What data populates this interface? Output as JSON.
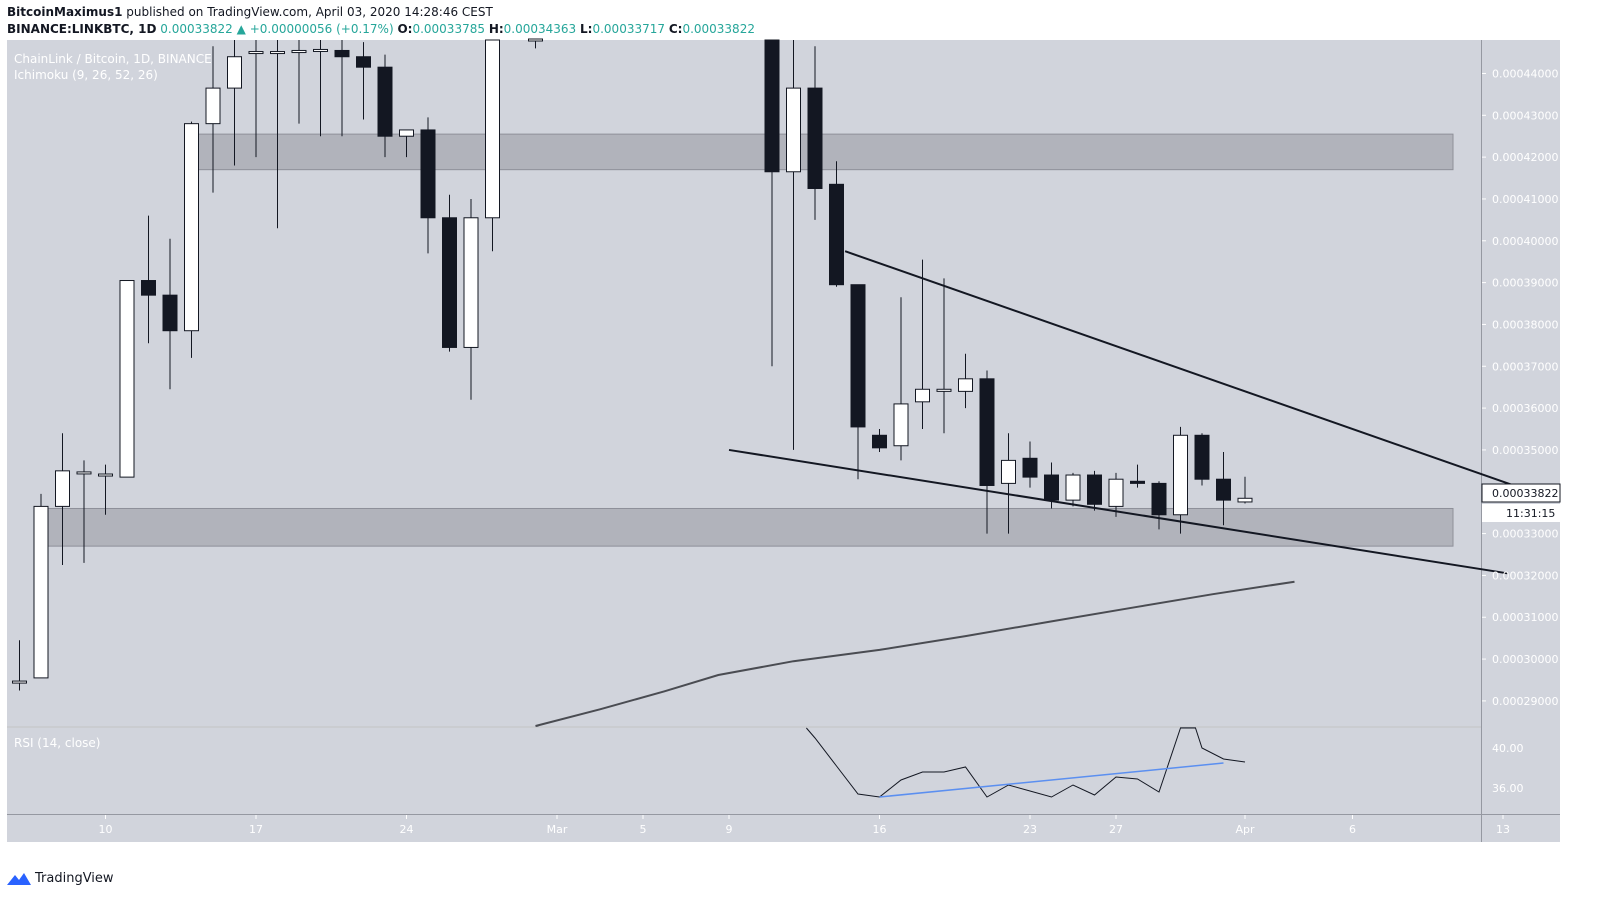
{
  "header": {
    "author": "BitcoinMaximus1",
    "published_text": "published on TradingView.com, April 03, 2020 14:28:46 CEST",
    "symbol": "BINANCE:LINKBTC, 1D",
    "last": "0.00033822",
    "change_arrow": "▲",
    "change": "+0.00000056 (+0.17%)",
    "o_label": "O:",
    "o": "0.00033785",
    "h_label": "H:",
    "h": "0.00034363",
    "l_label": "L:",
    "l": "0.00033717",
    "c_label": "C:",
    "c": "0.00033822"
  },
  "legend": {
    "title": "ChainLink / Bitcoin, 1D, BINANCE",
    "ichimoku": "Ichimoku (9, 26, 52, 26)",
    "rsi": "RSI (14, close)"
  },
  "price_tag": {
    "value": "0.00033822",
    "countdown": "11:31:15"
  },
  "footer": {
    "brand": "TradingView",
    "brand_icon": "tradingview-logo-icon"
  },
  "colors": {
    "background": "#d1d4dc",
    "bull_body": "#ffffff",
    "bear_body": "#131722",
    "zone": "#a6a8b0",
    "rsi_trend": "#5b8ff0",
    "accent_green": "#26a69a"
  },
  "chart_data": {
    "type": "candlestick",
    "ylim": [
      0.000284,
      0.000448
    ],
    "y_ticks": [
      0.00029,
      0.0003,
      0.00031,
      0.00032,
      0.00033,
      0.00034,
      0.00035,
      0.00036,
      0.00037,
      0.00038,
      0.00039,
      0.0004,
      0.00041,
      0.00042,
      0.00043,
      0.00044
    ],
    "y_tick_labels": [
      "0.00029000",
      "0.00030000",
      "0.00031000",
      "0.00032000",
      "0.00033000",
      "0.00034000",
      "0.00035000",
      "0.00036000",
      "0.00037000",
      "0.00038000",
      "0.00039000",
      "0.00040000",
      "0.00041000",
      "0.00042000",
      "0.00043000",
      "0.00044000"
    ],
    "x_ticks": [
      {
        "day": 10,
        "label": "10"
      },
      {
        "day": 17,
        "label": "17"
      },
      {
        "day": 24,
        "label": "24"
      },
      {
        "day": 31,
        "label": "Mar"
      },
      {
        "day": 35,
        "label": "5"
      },
      {
        "day": 39,
        "label": "9"
      },
      {
        "day": 46,
        "label": "16"
      },
      {
        "day": 53,
        "label": "23"
      },
      {
        "day": 57,
        "label": "27"
      },
      {
        "day": 63,
        "label": "Apr"
      },
      {
        "day": 68,
        "label": "6"
      },
      {
        "day": 75,
        "label": "13"
      }
    ],
    "candles": [
      {
        "d": 6,
        "o": 0.0002945,
        "h": 0.0003045,
        "l": 0.0002925,
        "c": 0.0002945
      },
      {
        "d": 7,
        "o": 0.0002955,
        "h": 0.0003395,
        "l": 0.0002955,
        "c": 0.0003365
      },
      {
        "d": 8,
        "o": 0.0003365,
        "h": 0.000354,
        "l": 0.0003225,
        "c": 0.000345
      },
      {
        "d": 9,
        "o": 0.0003445,
        "h": 0.0003475,
        "l": 0.000323,
        "c": 0.0003445
      },
      {
        "d": 10,
        "o": 0.000344,
        "h": 0.0003465,
        "l": 0.0003345,
        "c": 0.000344
      },
      {
        "d": 11,
        "o": 0.0003435,
        "h": 0.0003905,
        "l": 0.0003435,
        "c": 0.0003905
      },
      {
        "d": 12,
        "o": 0.0003905,
        "h": 0.000406,
        "l": 0.0003755,
        "c": 0.000387
      },
      {
        "d": 13,
        "o": 0.000387,
        "h": 0.0004005,
        "l": 0.0003645,
        "c": 0.0003785
      },
      {
        "d": 14,
        "o": 0.0003785,
        "h": 0.0004285,
        "l": 0.000372,
        "c": 0.000428
      },
      {
        "d": 15,
        "o": 0.000428,
        "h": 0.0004465,
        "l": 0.0004115,
        "c": 0.0004365
      },
      {
        "d": 16,
        "o": 0.0004365,
        "h": 0.000449,
        "l": 0.000418,
        "c": 0.000444
      },
      {
        "d": 17,
        "o": 0.000445,
        "h": 0.000448,
        "l": 0.00042,
        "c": 0.000445
      },
      {
        "d": 18,
        "o": 0.000445,
        "h": 0.000448,
        "l": 0.000403,
        "c": 0.000445
      },
      {
        "d": 19,
        "o": 0.000445,
        "h": 0.000448,
        "l": 0.000428,
        "c": 0.0004455
      },
      {
        "d": 20,
        "o": 0.0004455,
        "h": 0.000448,
        "l": 0.000425,
        "c": 0.0004455
      },
      {
        "d": 21,
        "o": 0.0004455,
        "h": 0.000448,
        "l": 0.000425,
        "c": 0.000444
      },
      {
        "d": 22,
        "o": 0.000444,
        "h": 0.0004475,
        "l": 0.000429,
        "c": 0.0004415
      },
      {
        "d": 23,
        "o": 0.0004415,
        "h": 0.0004445,
        "l": 0.00042,
        "c": 0.000425
      },
      {
        "d": 24,
        "o": 0.000425,
        "h": 0.000426,
        "l": 0.00042,
        "c": 0.0004265
      },
      {
        "d": 25,
        "o": 0.0004265,
        "h": 0.0004295,
        "l": 0.000397,
        "c": 0.0004055
      },
      {
        "d": 26,
        "o": 0.0004055,
        "h": 0.000411,
        "l": 0.0003735,
        "c": 0.0003745
      },
      {
        "d": 27,
        "o": 0.0003745,
        "h": 0.00041,
        "l": 0.000362,
        "c": 0.0004055
      },
      {
        "d": 28,
        "o": 0.0004055,
        "h": 0.000448,
        "l": 0.0003975,
        "c": 0.000448
      },
      {
        "d": 30,
        "o": 0.000448,
        "h": 0.000448,
        "l": 0.000446,
        "c": 0.000448
      },
      {
        "d": 41,
        "o": 0.000448,
        "h": 0.000449,
        "l": 0.00037,
        "c": 0.0004165
      },
      {
        "d": 42,
        "o": 0.0004165,
        "h": 0.000448,
        "l": 0.00035,
        "c": 0.0004365
      },
      {
        "d": 43,
        "o": 0.0004365,
        "h": 0.0004465,
        "l": 0.000405,
        "c": 0.0004125
      },
      {
        "d": 44,
        "o": 0.0004135,
        "h": 0.000419,
        "l": 0.000389,
        "c": 0.0003895
      },
      {
        "d": 45,
        "o": 0.0003895,
        "h": 0.0003895,
        "l": 0.000343,
        "c": 0.0003555
      },
      {
        "d": 46,
        "o": 0.0003535,
        "h": 0.000355,
        "l": 0.0003495,
        "c": 0.0003505
      },
      {
        "d": 47,
        "o": 0.000351,
        "h": 0.0003865,
        "l": 0.0003475,
        "c": 0.000361
      },
      {
        "d": 48,
        "o": 0.0003615,
        "h": 0.0003955,
        "l": 0.000355,
        "c": 0.0003645
      },
      {
        "d": 49,
        "o": 0.000364,
        "h": 0.000391,
        "l": 0.000354,
        "c": 0.0003645
      },
      {
        "d": 50,
        "o": 0.000364,
        "h": 0.000373,
        "l": 0.00036,
        "c": 0.000367
      },
      {
        "d": 51,
        "o": 0.000367,
        "h": 0.000369,
        "l": 0.00033,
        "c": 0.0003415
      },
      {
        "d": 52,
        "o": 0.000342,
        "h": 0.000354,
        "l": 0.00033,
        "c": 0.0003475
      },
      {
        "d": 53,
        "o": 0.000348,
        "h": 0.000352,
        "l": 0.000341,
        "c": 0.0003435
      },
      {
        "d": 54,
        "o": 0.000344,
        "h": 0.000347,
        "l": 0.000336,
        "c": 0.000338
      },
      {
        "d": 55,
        "o": 0.000338,
        "h": 0.0003445,
        "l": 0.0003365,
        "c": 0.000344
      },
      {
        "d": 56,
        "o": 0.000344,
        "h": 0.000345,
        "l": 0.0003355,
        "c": 0.000337
      },
      {
        "d": 57,
        "o": 0.0003365,
        "h": 0.0003445,
        "l": 0.000334,
        "c": 0.000343
      },
      {
        "d": 58,
        "o": 0.0003425,
        "h": 0.0003465,
        "l": 0.000341,
        "c": 0.000342
      },
      {
        "d": 59,
        "o": 0.000342,
        "h": 0.0003425,
        "l": 0.000331,
        "c": 0.0003345
      },
      {
        "d": 60,
        "o": 0.0003345,
        "h": 0.0003555,
        "l": 0.00033,
        "c": 0.0003535
      },
      {
        "d": 61,
        "o": 0.0003535,
        "h": 0.000354,
        "l": 0.0003415,
        "c": 0.000343
      },
      {
        "d": 62,
        "o": 0.000343,
        "h": 0.0003495,
        "l": 0.000332,
        "c": 0.000338
      },
      {
        "d": 63,
        "o": 0.0003378,
        "h": 0.0003436,
        "l": 0.0003372,
        "c": 0.0003382
      }
    ],
    "zones": [
      {
        "from": 0.000417,
        "to": 0.0004255
      },
      {
        "from": 0.000327,
        "to": 0.000336
      }
    ],
    "trendlines": [
      {
        "from": {
          "d": 44.4,
          "y": 0.0003975
        },
        "to": {
          "d": 75.5,
          "y": 0.0003415
        }
      },
      {
        "from": {
          "d": 39.0,
          "y": 0.00035
        },
        "to": {
          "d": 75.2,
          "y": 0.0003205
        }
      }
    ],
    "cloud_line": [
      {
        "d": 30.0,
        "y": 0.000284
      },
      {
        "d": 33.0,
        "y": 0.000288
      },
      {
        "d": 36.0,
        "y": 0.0002923
      },
      {
        "d": 38.5,
        "y": 0.0002962
      },
      {
        "d": 42.0,
        "y": 0.0002995
      },
      {
        "d": 46.0,
        "y": 0.0003022
      },
      {
        "d": 50.0,
        "y": 0.0003055
      },
      {
        "d": 54.0,
        "y": 0.000309
      },
      {
        "d": 58.0,
        "y": 0.0003125
      },
      {
        "d": 61.5,
        "y": 0.0003155
      },
      {
        "d": 65.3,
        "y": 0.0003185
      }
    ],
    "rsi": {
      "ylim": [
        33.5,
        42.0
      ],
      "ticks": [
        36,
        40
      ],
      "tick_labels": [
        "36.00",
        "40.00"
      ],
      "values": [
        {
          "d": 42.6,
          "v": 42.0
        },
        {
          "d": 43.0,
          "v": 41.0
        },
        {
          "d": 44.0,
          "v": 38.2
        },
        {
          "d": 45.0,
          "v": 35.4
        },
        {
          "d": 46.0,
          "v": 35.1
        },
        {
          "d": 47.0,
          "v": 36.8
        },
        {
          "d": 48.0,
          "v": 37.6
        },
        {
          "d": 49.0,
          "v": 37.6
        },
        {
          "d": 50.0,
          "v": 38.1
        },
        {
          "d": 51.0,
          "v": 35.1
        },
        {
          "d": 52.0,
          "v": 36.3
        },
        {
          "d": 53.0,
          "v": 35.7
        },
        {
          "d": 54.0,
          "v": 35.1
        },
        {
          "d": 55.0,
          "v": 36.3
        },
        {
          "d": 56.0,
          "v": 35.3
        },
        {
          "d": 57.0,
          "v": 37.1
        },
        {
          "d": 58.0,
          "v": 36.9
        },
        {
          "d": 59.0,
          "v": 35.6
        },
        {
          "d": 60.0,
          "v": 42.0
        },
        {
          "d": 60.7,
          "v": 42.0
        },
        {
          "d": 61.0,
          "v": 40.0
        },
        {
          "d": 62.0,
          "v": 38.9
        },
        {
          "d": 63.0,
          "v": 38.6
        }
      ],
      "trend": {
        "from": {
          "d": 46.0,
          "v": 35.1
        },
        "to": {
          "d": 62.0,
          "v": 38.5
        }
      }
    }
  }
}
